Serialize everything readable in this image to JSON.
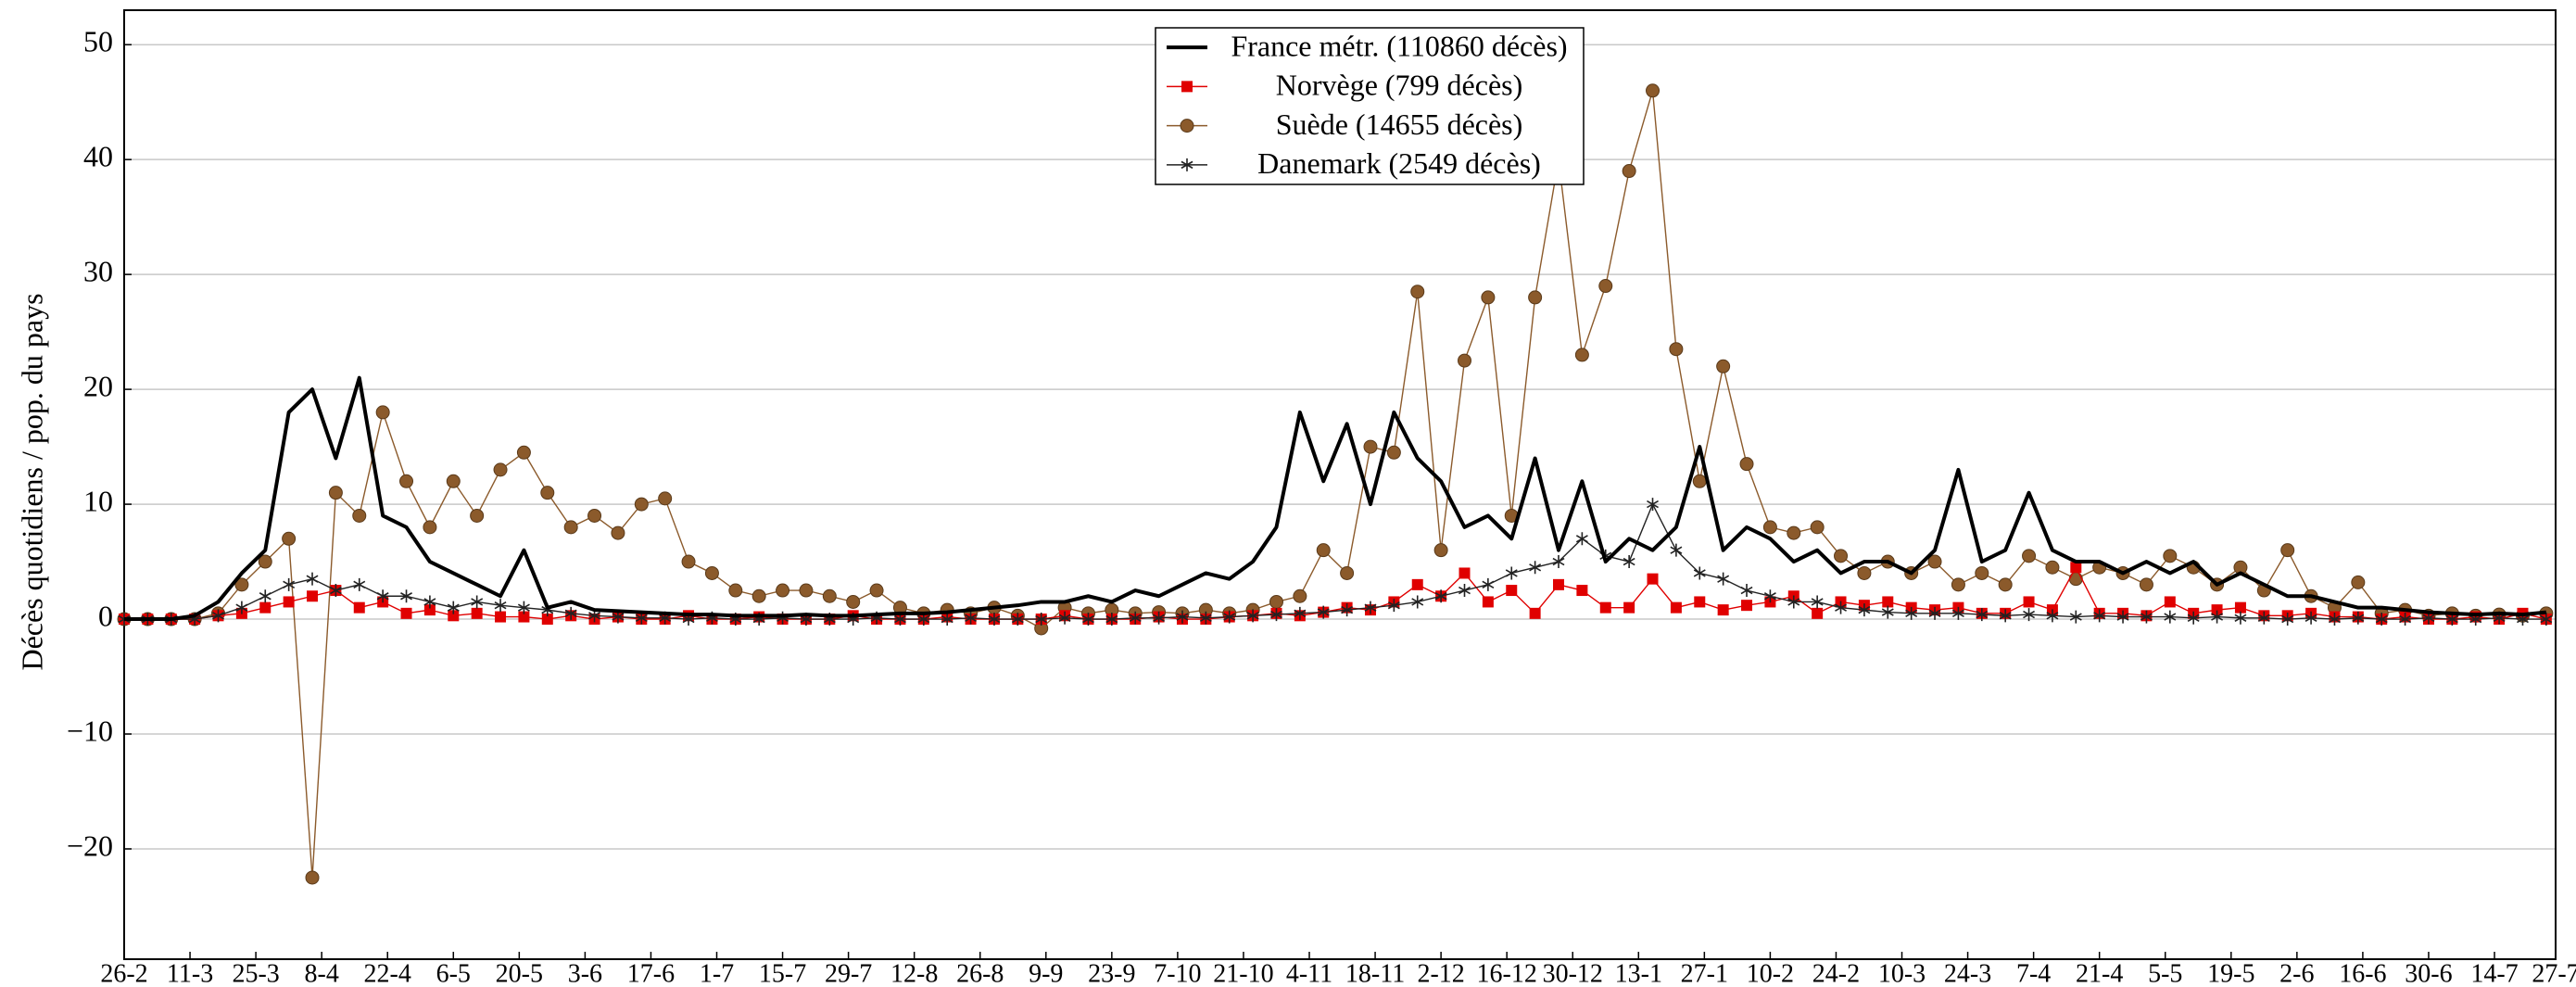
{
  "chart_data": {
    "type": "line",
    "y_label": "Décès quotidiens / pop. du pays",
    "x": [
      0,
      5,
      10,
      15,
      20,
      25,
      30,
      35,
      40,
      45,
      50,
      55,
      60,
      65,
      70,
      75,
      80,
      85,
      90,
      95,
      100,
      105,
      110,
      115,
      120,
      125,
      130,
      135,
      140,
      145,
      150,
      155,
      160,
      165,
      170,
      175,
      180,
      185,
      190,
      195,
      200,
      205,
      210,
      215,
      220,
      225,
      230,
      235,
      240,
      245,
      250,
      255,
      260,
      265,
      270,
      275,
      280,
      285,
      290,
      295,
      300,
      305,
      310,
      315,
      320,
      325,
      330,
      335,
      340,
      345,
      350,
      355,
      360,
      365,
      370,
      375,
      380,
      385,
      390,
      395,
      400,
      405,
      410,
      415,
      420,
      425,
      430,
      435,
      440,
      445,
      450,
      455,
      460,
      465,
      470,
      475,
      480,
      485,
      490,
      495,
      500,
      505,
      510,
      515
    ],
    "xlim": [
      0,
      517
    ],
    "xticks": [
      {
        "value": 0,
        "label": "26-2"
      },
      {
        "value": 14,
        "label": "11-3"
      },
      {
        "value": 28,
        "label": "25-3"
      },
      {
        "value": 42,
        "label": "8-4"
      },
      {
        "value": 56,
        "label": "22-4"
      },
      {
        "value": 70,
        "label": "6-5"
      },
      {
        "value": 84,
        "label": "20-5"
      },
      {
        "value": 98,
        "label": "3-6"
      },
      {
        "value": 112,
        "label": "17-6"
      },
      {
        "value": 126,
        "label": "1-7"
      },
      {
        "value": 140,
        "label": "15-7"
      },
      {
        "value": 154,
        "label": "29-7"
      },
      {
        "value": 168,
        "label": "12-8"
      },
      {
        "value": 182,
        "label": "26-8"
      },
      {
        "value": 196,
        "label": "9-9"
      },
      {
        "value": 210,
        "label": "23-9"
      },
      {
        "value": 224,
        "label": "7-10"
      },
      {
        "value": 238,
        "label": "21-10"
      },
      {
        "value": 252,
        "label": "4-11"
      },
      {
        "value": 266,
        "label": "18-11"
      },
      {
        "value": 280,
        "label": "2-12"
      },
      {
        "value": 294,
        "label": "16-12"
      },
      {
        "value": 308,
        "label": "30-12"
      },
      {
        "value": 322,
        "label": "13-1"
      },
      {
        "value": 336,
        "label": "27-1"
      },
      {
        "value": 350,
        "label": "10-2"
      },
      {
        "value": 364,
        "label": "24-2"
      },
      {
        "value": 378,
        "label": "10-3"
      },
      {
        "value": 392,
        "label": "24-3"
      },
      {
        "value": 406,
        "label": "7-4"
      },
      {
        "value": 420,
        "label": "21-4"
      },
      {
        "value": 434,
        "label": "5-5"
      },
      {
        "value": 448,
        "label": "19-5"
      },
      {
        "value": 462,
        "label": "2-6"
      },
      {
        "value": 476,
        "label": "16-6"
      },
      {
        "value": 490,
        "label": "30-6"
      },
      {
        "value": 504,
        "label": "14-7"
      },
      {
        "value": 517,
        "label": "27-7"
      }
    ],
    "ylim": [
      -29.6,
      53
    ],
    "yticks": [
      {
        "value": -20,
        "label": "−20"
      },
      {
        "value": -10,
        "label": "−10"
      },
      0,
      10,
      20,
      30,
      40,
      50
    ],
    "grid": true,
    "legend": "top-center",
    "series": [
      {
        "name": "France métr. (110860 décès)",
        "color": "#000000",
        "marker": "none",
        "values": [
          0,
          0,
          0,
          0.3,
          1.5,
          4,
          6,
          18,
          20,
          14,
          21,
          9,
          8,
          5,
          4,
          3,
          2,
          6,
          1,
          1.5,
          0.8,
          0.7,
          0.6,
          0.5,
          0.4,
          0.4,
          0.3,
          0.3,
          0.3,
          0.4,
          0.3,
          0.3,
          0.4,
          0.5,
          0.5,
          0.6,
          0.8,
          1,
          1.2,
          1.5,
          1.5,
          2,
          1.5,
          2.5,
          2,
          3,
          4,
          3.5,
          5,
          8,
          18,
          12,
          17,
          10,
          18,
          14,
          12,
          8,
          9,
          7,
          14,
          6,
          12,
          5,
          7,
          6,
          8,
          15,
          6,
          8,
          7,
          5,
          6,
          4,
          5,
          5,
          4,
          6,
          13,
          5,
          6,
          11,
          6,
          5,
          5,
          4,
          5,
          4,
          5,
          3,
          4,
          3,
          2,
          2,
          1.5,
          1,
          1,
          0.8,
          0.6,
          0.5,
          0.4,
          0.5,
          0.4,
          0.6
        ]
      },
      {
        "name": "Norvège (799 décès)",
        "color": "#e00000",
        "marker": "square",
        "values": [
          0,
          0,
          0,
          0,
          0.3,
          0.5,
          1,
          1.5,
          2,
          2.5,
          1,
          1.5,
          0.5,
          0.8,
          0.3,
          0.5,
          0.2,
          0.2,
          0,
          0.3,
          0,
          0.2,
          0,
          0,
          0.3,
          0,
          0,
          0.2,
          0,
          0,
          0,
          0.3,
          0,
          0,
          0,
          0.2,
          0,
          0,
          0,
          0,
          0.3,
          0,
          0,
          0,
          0.2,
          0,
          0,
          0.2,
          0.3,
          0.5,
          0.3,
          0.6,
          1,
          0.8,
          1.5,
          3,
          2,
          4,
          1.5,
          2.5,
          0.5,
          3,
          2.5,
          1,
          1,
          3.5,
          1,
          1.5,
          0.8,
          1.2,
          1.5,
          2,
          0.5,
          1.5,
          1.2,
          1.5,
          1,
          0.8,
          1,
          0.5,
          0.5,
          1.5,
          0.8,
          4.5,
          0.5,
          0.5,
          0.3,
          1.5,
          0.5,
          0.8,
          1,
          0.3,
          0.3,
          0.5,
          0.2,
          0.2,
          0,
          0.2,
          0,
          0,
          0.2,
          0,
          0.5,
          0
        ]
      },
      {
        "name": "Suède (14655 décès)",
        "color": "#8b5a2b",
        "marker": "circle",
        "values": [
          0,
          0,
          0,
          0,
          0.5,
          3,
          5,
          7,
          -22.5,
          11,
          9,
          18,
          12,
          8,
          12,
          9,
          13,
          14.5,
          11,
          8,
          9,
          7.5,
          10,
          10.5,
          5,
          4,
          2.5,
          2,
          2.5,
          2.5,
          2,
          1.5,
          2.5,
          1,
          0.5,
          0.8,
          0.5,
          1,
          0.3,
          -0.8,
          1,
          0.5,
          0.8,
          0.5,
          0.6,
          0.5,
          0.8,
          0.5,
          0.8,
          1.5,
          2,
          6,
          4,
          15,
          14.5,
          28.5,
          6,
          22.5,
          28,
          9,
          28,
          40,
          23,
          29,
          39,
          46,
          23.5,
          12,
          22,
          13.5,
          8,
          7.5,
          8,
          5.5,
          4,
          5,
          4,
          5,
          3,
          4,
          3,
          5.5,
          4.5,
          3.5,
          4.5,
          4,
          3,
          5.5,
          4.5,
          3,
          4.5,
          2.5,
          6,
          2,
          1,
          3.2,
          0.5,
          0.8,
          0.3,
          0.5,
          0.3,
          0.4,
          0.3,
          0.5
        ]
      },
      {
        "name": "Danemark (2549 décès)",
        "color": "#222222",
        "marker": "star",
        "values": [
          0,
          0,
          0,
          0,
          0.3,
          1,
          2,
          3,
          3.5,
          2.5,
          3,
          2,
          2,
          1.5,
          1,
          1.5,
          1.2,
          1,
          0.8,
          0.5,
          0.3,
          0.2,
          0.1,
          0.1,
          0,
          0.1,
          0,
          0,
          0.1,
          0,
          0,
          0,
          0.1,
          0,
          0,
          0,
          0.1,
          0,
          0,
          0,
          0.1,
          0,
          0,
          0.1,
          0.1,
          0.2,
          0.1,
          0.2,
          0.3,
          0.4,
          0.5,
          0.6,
          0.8,
          1,
          1.2,
          1.5,
          2,
          2.5,
          3,
          4,
          4.5,
          5,
          7,
          5.5,
          5,
          10,
          6,
          4,
          3.5,
          2.5,
          2,
          1.5,
          1.5,
          1,
          0.8,
          0.6,
          0.5,
          0.5,
          0.5,
          0.4,
          0.3,
          0.4,
          0.3,
          0.2,
          0.3,
          0.2,
          0.2,
          0.2,
          0.1,
          0.2,
          0.1,
          0.1,
          0,
          0.1,
          0,
          0.1,
          0,
          0,
          0.1,
          0,
          0,
          0.1,
          0,
          0
        ]
      }
    ]
  }
}
